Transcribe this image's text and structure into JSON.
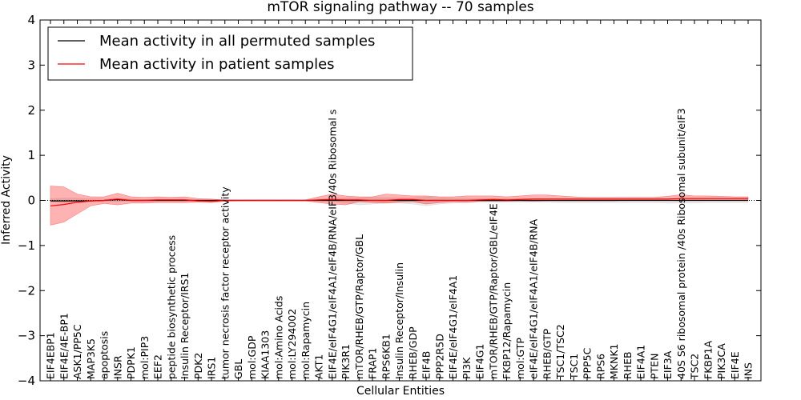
{
  "chart_data": {
    "type": "line",
    "title": "mTOR signaling pathway -- 70 samples",
    "xlabel": "Cellular Entities",
    "ylabel": "Inferred Activity",
    "ylim": [
      -4,
      4
    ],
    "yticks": [
      -4,
      -3,
      -2,
      -1,
      0,
      1,
      2,
      3,
      4
    ],
    "legend_position": "top-left",
    "grid": false,
    "categories": [
      "EIF4EBP1",
      "EIF4E/4E-BP1",
      "ASK1/PP5C",
      "MAP3K5",
      "apoptosis",
      "INSR",
      "PDPK1",
      "mol:PIP3",
      "EEF2",
      "peptide biosynthetic process",
      "Insulin Receptor/IRS1",
      "PDK2",
      "IRS1",
      "tumor necrosis factor receptor activity",
      "GBL",
      "mol:GDP",
      "KIAA1303",
      "mol:Amino Acids",
      "mol:LY294002",
      "mol:Rapamycin",
      "AKT1",
      "EIF4E/eIF4G1/eIF4A1/eIF4B/RNA/eIF3/40s Ribosomal s",
      "PIK3R1",
      "mTOR/RHEB/GTP/Raptor/GBL",
      "FRAP1",
      "RPS6KB1",
      "Insulin Receptor/Insulin",
      "RHEB/GDP",
      "EIF4B",
      "PPP2R5D",
      "EIF4E/eIF4G1/eIF4A1",
      "PI3K",
      "EIF4G1",
      "mTOR/RHEB/GTP/Raptor/GBL/eIF4E",
      "FKBP12/Rapamycin",
      "mol:GTP",
      "eIF4E/eIF4G1/eIF4A1/eIF4B/RNA",
      "RHEB/GTP",
      "TSC1/TSC2",
      "TSC1",
      "PPP5C",
      "RPS6",
      "MKNK1",
      "RHEB",
      "EIF4A1",
      "PTEN",
      "EIF3A",
      "40S S6 ribosomal protein /40s Ribosomal subunit/eIF3",
      "TSC2",
      "FKBP1A",
      "PIK3CA",
      "EIF4E",
      "INS"
    ],
    "series": [
      {
        "name": "Mean activity in all permuted samples",
        "color": "#000000",
        "values": [
          -0.01,
          -0.01,
          -0.01,
          -0.01,
          0.0,
          0.02,
          0.0,
          0.0,
          0.0,
          0.0,
          0.0,
          0.0,
          0.0,
          0.0,
          0.0,
          0.0,
          0.0,
          0.0,
          0.0,
          0.0,
          0.0,
          0.0,
          0.0,
          0.0,
          0.0,
          0.0,
          0.0,
          0.0,
          0.0,
          0.0,
          0.0,
          0.0,
          0.0,
          0.0,
          0.0,
          0.0,
          0.0,
          0.0,
          0.0,
          0.0,
          0.0,
          0.0,
          0.0,
          0.0,
          0.0,
          0.0,
          0.0,
          0.0,
          0.0,
          0.0,
          0.0,
          0.0,
          0.0
        ],
        "band_lower": [
          -0.03,
          -0.06,
          -0.05,
          -0.04,
          -0.03,
          -0.03,
          -0.02,
          -0.02,
          -0.02,
          -0.02,
          -0.02,
          -0.02,
          -0.02,
          -0.01,
          -0.01,
          -0.01,
          -0.01,
          -0.01,
          -0.01,
          -0.01,
          -0.01,
          -0.02,
          -0.06,
          -0.1,
          -0.08,
          -0.06,
          -0.06,
          -0.08,
          -0.12,
          -0.08,
          -0.06,
          -0.05,
          -0.04,
          -0.04,
          -0.04,
          -0.04,
          -0.04,
          -0.04,
          -0.05,
          -0.05,
          -0.05,
          -0.05,
          -0.05,
          -0.05,
          -0.05,
          -0.05,
          -0.06,
          -0.06,
          -0.06,
          -0.05,
          -0.05,
          -0.05,
          -0.05
        ],
        "band_upper": [
          0.04,
          0.05,
          0.05,
          0.04,
          0.03,
          0.05,
          0.03,
          0.02,
          0.02,
          0.02,
          0.02,
          0.02,
          0.02,
          0.01,
          0.01,
          0.01,
          0.01,
          0.01,
          0.01,
          0.01,
          0.02,
          0.05,
          0.06,
          0.06,
          0.07,
          0.06,
          0.06,
          0.06,
          0.08,
          0.06,
          0.05,
          0.05,
          0.04,
          0.04,
          0.04,
          0.04,
          0.04,
          0.04,
          0.04,
          0.04,
          0.04,
          0.04,
          0.04,
          0.04,
          0.04,
          0.04,
          0.04,
          0.04,
          0.04,
          0.04,
          0.04,
          0.04,
          0.04
        ]
      },
      {
        "name": "Mean activity in patient samples",
        "color": "#ff0000",
        "values": [
          -0.12,
          -0.09,
          -0.04,
          -0.01,
          0.0,
          0.03,
          0.0,
          0.0,
          0.01,
          0.01,
          0.01,
          -0.01,
          -0.02,
          0.0,
          0.0,
          0.0,
          0.0,
          0.0,
          0.0,
          0.0,
          0.01,
          0.02,
          0.01,
          0.01,
          0.0,
          0.0,
          0.02,
          0.02,
          0.0,
          0.0,
          0.0,
          0.0,
          0.01,
          0.02,
          0.01,
          0.02,
          0.03,
          0.03,
          0.03,
          0.03,
          0.03,
          0.03,
          0.03,
          0.03,
          0.03,
          0.03,
          0.03,
          0.04,
          0.04,
          0.04,
          0.04,
          0.04,
          0.04
        ],
        "band_lower": [
          -0.55,
          -0.48,
          -0.3,
          -0.12,
          -0.07,
          -0.1,
          -0.06,
          -0.06,
          -0.05,
          -0.05,
          -0.05,
          -0.04,
          -0.05,
          -0.02,
          -0.01,
          -0.01,
          -0.01,
          -0.01,
          -0.01,
          -0.01,
          -0.05,
          -0.08,
          -0.1,
          -0.03,
          -0.05,
          -0.06,
          -0.04,
          -0.03,
          -0.08,
          -0.05,
          -0.03,
          -0.04,
          -0.02,
          -0.02,
          -0.02,
          -0.01,
          -0.02,
          -0.01,
          -0.01,
          -0.01,
          -0.01,
          -0.01,
          -0.01,
          0.0,
          0.0,
          0.0,
          0.0,
          -0.01,
          0.0,
          0.0,
          0.0,
          0.0,
          0.0
        ],
        "band_upper": [
          0.32,
          0.3,
          0.14,
          0.08,
          0.08,
          0.16,
          0.08,
          0.07,
          0.08,
          0.07,
          0.08,
          0.04,
          0.03,
          0.01,
          0.01,
          0.01,
          0.01,
          0.01,
          0.01,
          0.01,
          0.08,
          0.14,
          0.1,
          0.08,
          0.08,
          0.14,
          0.12,
          0.1,
          0.1,
          0.08,
          0.08,
          0.1,
          0.1,
          0.1,
          0.08,
          0.1,
          0.12,
          0.12,
          0.1,
          0.08,
          0.07,
          0.07,
          0.07,
          0.07,
          0.07,
          0.07,
          0.09,
          0.13,
          0.1,
          0.1,
          0.09,
          0.08,
          0.08
        ]
      }
    ]
  }
}
